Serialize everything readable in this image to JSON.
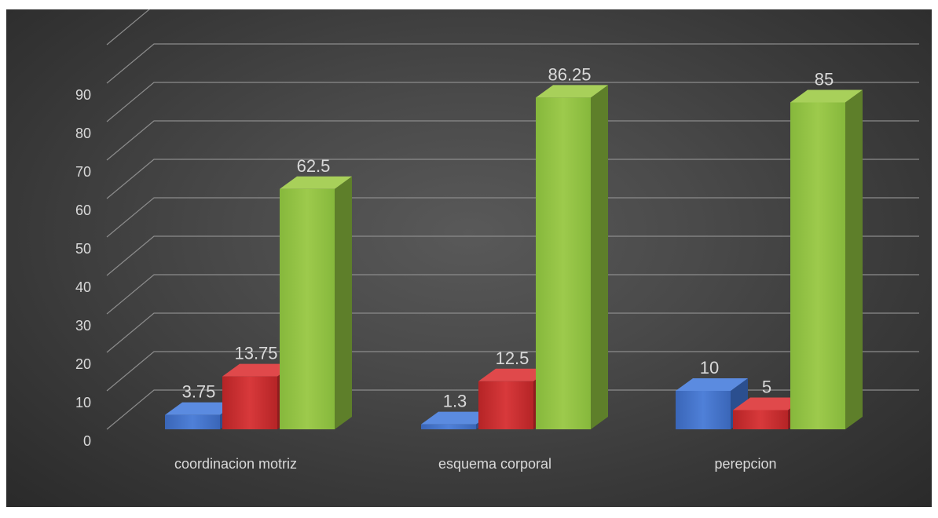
{
  "chart_data": {
    "type": "bar",
    "categories": [
      "coordinacion motriz",
      "esquema corporal",
      "perepcion"
    ],
    "series": [
      {
        "values": [
          3.75,
          1.3,
          10
        ],
        "color": "#4472c4"
      },
      {
        "values": [
          13.75,
          12.5,
          5
        ],
        "color": "#c0292b"
      },
      {
        "values": [
          62.5,
          86.25,
          85
        ],
        "color": "#8cb842"
      }
    ],
    "data_labels": [
      [
        "3.75",
        "1.3",
        "10"
      ],
      [
        "13.75",
        "12.5",
        "5"
      ],
      [
        "62.5",
        "86.25",
        "85"
      ]
    ],
    "y_ticks": [
      "0",
      "10",
      "20",
      "30",
      "40",
      "50",
      "60",
      "70",
      "80",
      "90"
    ],
    "ylim": [
      0,
      100
    ],
    "style": "3d-clustered-column",
    "grid": true,
    "legend": false
  }
}
